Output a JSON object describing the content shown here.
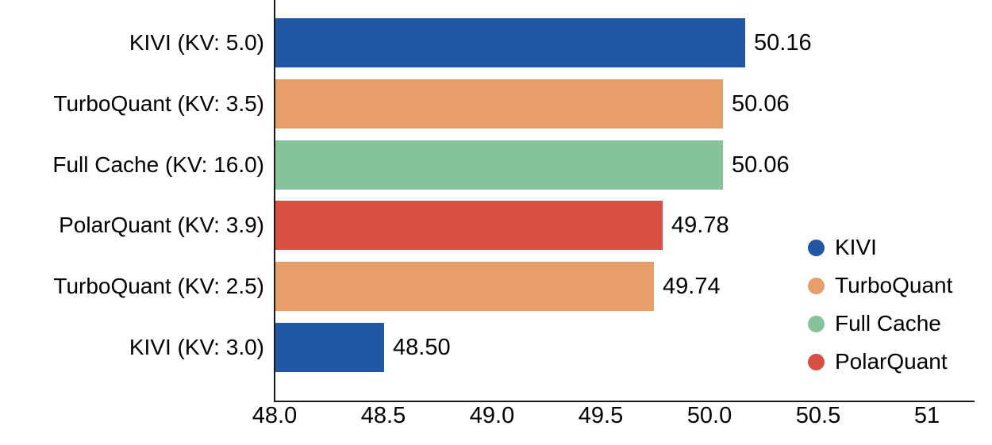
{
  "chart_data": {
    "type": "bar",
    "orientation": "horizontal",
    "title": "",
    "xlabel": "",
    "ylabel": "",
    "grid": false,
    "xlim": [
      48.0,
      51.22
    ],
    "categories": [
      "KIVI (KV: 5.0)",
      "TurboQuant (KV: 3.5)",
      "Full Cache (KV: 16.0)",
      "PolarQuant (KV: 3.9)",
      "TurboQuant (KV: 2.5)",
      "KIVI (KV: 3.0)"
    ],
    "values": [
      50.16,
      50.06,
      50.06,
      49.78,
      49.74,
      48.5
    ],
    "value_labels": [
      "50.16",
      "50.06",
      "50.06",
      "49.78",
      "49.74",
      "48.50"
    ],
    "bar_series": [
      "KIVI",
      "TurboQuant",
      "Full Cache",
      "PolarQuant",
      "TurboQuant",
      "KIVI"
    ],
    "x_ticks": [
      {
        "value": 48.0,
        "label": "48.0"
      },
      {
        "value": 48.5,
        "label": "48.5"
      },
      {
        "value": 49.0,
        "label": "49.0"
      },
      {
        "value": 49.5,
        "label": "49.5"
      },
      {
        "value": 50.0,
        "label": "50.0"
      },
      {
        "value": 50.5,
        "label": "50.5"
      },
      {
        "value": 51.0,
        "label": "51"
      }
    ],
    "legend": {
      "position": "right-center",
      "entries": [
        {
          "label": "KIVI",
          "color": "#2157a5"
        },
        {
          "label": "TurboQuant",
          "color": "#e89e6b"
        },
        {
          "label": "Full Cache",
          "color": "#85c49b"
        },
        {
          "label": "PolarQuant",
          "color": "#d85043"
        }
      ]
    },
    "colors": {
      "axis": "#1a1a1a",
      "text": "#000000",
      "background": "#ffffff"
    }
  }
}
